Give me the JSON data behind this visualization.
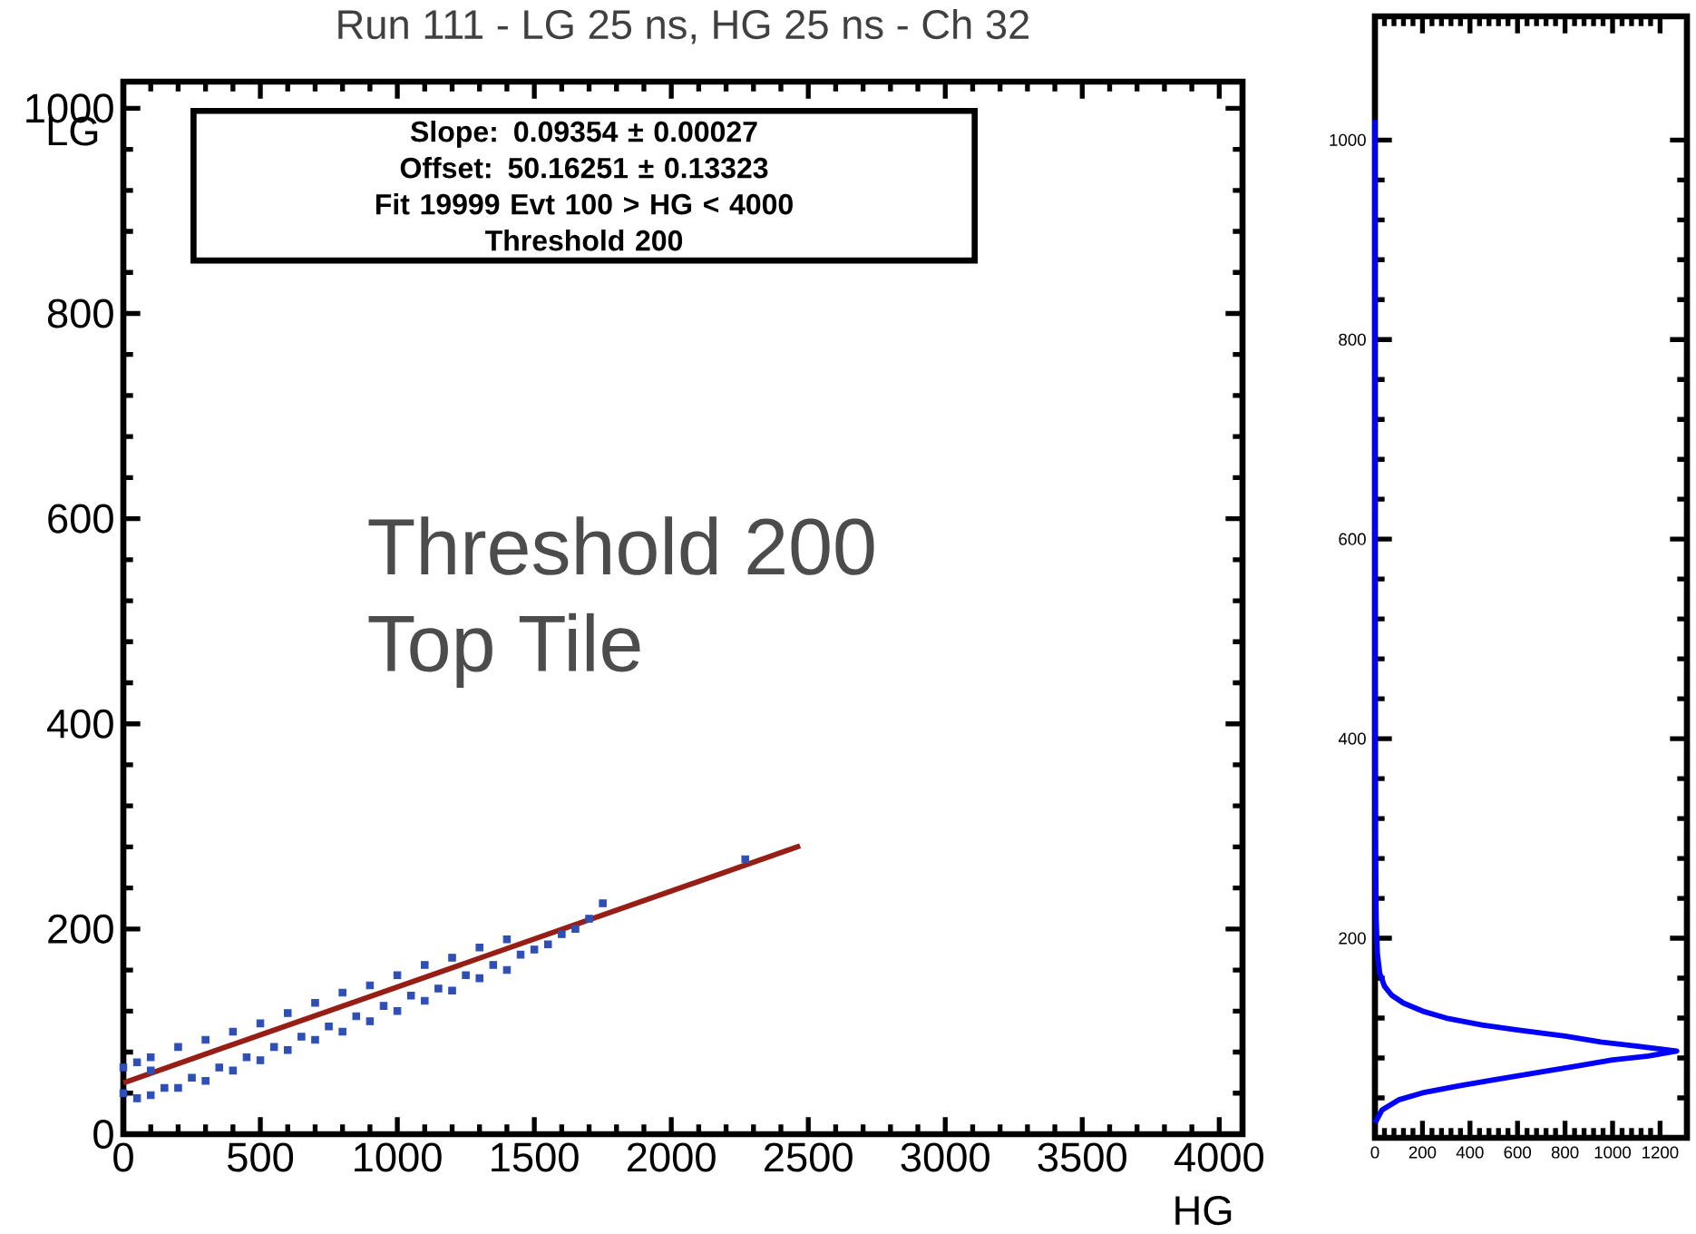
{
  "chart_data": [
    {
      "type": "scatter",
      "title": "Run 111 - LG 25 ns, HG 25 ns - Ch 32",
      "xlabel": "HG",
      "ylabel": "LG",
      "xlim": [
        0,
        4085
      ],
      "ylim": [
        0,
        1026
      ],
      "xticks": [
        0,
        500,
        1000,
        1500,
        2000,
        2500,
        3000,
        3500,
        4000
      ],
      "yticks": [
        0,
        200,
        400,
        600,
        800,
        1000
      ],
      "grid": false,
      "annotations": [
        "Slope: 0.09354   ± 0.00027",
        "Offset: 50.16251   ± 0.13323",
        "Fit 19999 Evt 100 > HG < 4000",
        "Threshold 200",
        "Threshold 200",
        "Top Tile"
      ],
      "series": [
        {
          "type": "scatter",
          "marker": "square",
          "color": "#2e4fb5",
          "x": [
            0,
            0,
            50,
            50,
            100,
            100,
            100,
            150,
            200,
            200,
            250,
            300,
            300,
            350,
            400,
            400,
            450,
            500,
            500,
            550,
            600,
            600,
            650,
            700,
            700,
            750,
            800,
            800,
            850,
            900,
            900,
            950,
            1000,
            1000,
            1050,
            1100,
            1100,
            1150,
            1200,
            1200,
            1250,
            1300,
            1300,
            1350,
            1400,
            1400,
            1450,
            1500,
            1550,
            1600,
            1650,
            1700,
            1750,
            2270
          ],
          "values": [
            40,
            65,
            35,
            70,
            38,
            62,
            75,
            45,
            45,
            85,
            55,
            52,
            92,
            65,
            62,
            100,
            75,
            72,
            108,
            85,
            82,
            118,
            95,
            92,
            128,
            105,
            100,
            138,
            115,
            110,
            145,
            125,
            120,
            155,
            135,
            130,
            165,
            142,
            140,
            172,
            155,
            152,
            182,
            165,
            160,
            190,
            175,
            180,
            185,
            195,
            200,
            210,
            225,
            268
          ]
        },
        {
          "type": "line",
          "marker": "none",
          "color": "#961e14",
          "x": [
            0,
            2470
          ],
          "values": [
            50,
            281
          ]
        }
      ]
    },
    {
      "type": "line",
      "xlim": [
        0,
        1313
      ],
      "ylim": [
        0,
        1124
      ],
      "xticks": [
        0,
        200,
        400,
        600,
        800,
        1000,
        1200
      ],
      "yticks": [
        {
          "value": 0,
          "label": null
        },
        200,
        400,
        600,
        800,
        1000
      ],
      "marker": "none",
      "grid": false,
      "series": [
        {
          "color": "#0000ff",
          "x": [
            0,
            30,
            100,
            200,
            350,
            500,
            700,
            850,
            1000,
            1150,
            1270,
            1100,
            950,
            800,
            600,
            450,
            300,
            200,
            120,
            70,
            40,
            20,
            10,
            5,
            2,
            0,
            0
          ],
          "values": [
            15,
            28,
            38,
            45,
            52,
            58,
            66,
            72,
            78,
            82,
            87,
            92,
            96,
            102,
            108,
            113,
            120,
            127,
            135,
            143,
            152,
            165,
            185,
            220,
            300,
            500,
            1020
          ]
        }
      ]
    }
  ]
}
